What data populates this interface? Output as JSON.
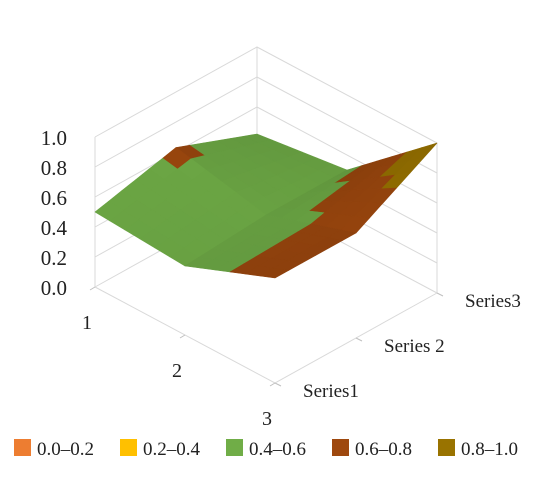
{
  "chart_data": {
    "type": "surface-3d",
    "title": "",
    "categories": [
      "1",
      "2",
      "3"
    ],
    "series": [
      {
        "name": "Series1",
        "values": [
          0.5,
          0.46,
          0.7
        ]
      },
      {
        "name": "Series 2",
        "values": [
          0.63,
          0.5,
          0.7
        ]
      },
      {
        "name": "Series3",
        "values": [
          0.42,
          0.5,
          1.0
        ]
      }
    ],
    "zticks": [
      "0.0",
      "0.2",
      "0.4",
      "0.6",
      "0.8",
      "1.0"
    ],
    "zlim": [
      0,
      1.0
    ],
    "grid": true,
    "legend_position": "bottom",
    "legend": [
      {
        "label": "0.0–0.2",
        "color": "#ed7d31"
      },
      {
        "label": "0.2–0.4",
        "color": "#ffc000"
      },
      {
        "label": "0.4–0.6",
        "color": "#70ad47"
      },
      {
        "label": "0.6–0.8",
        "color": "#9e480e"
      },
      {
        "label": "0.8–1.0",
        "color": "#997300"
      }
    ]
  }
}
